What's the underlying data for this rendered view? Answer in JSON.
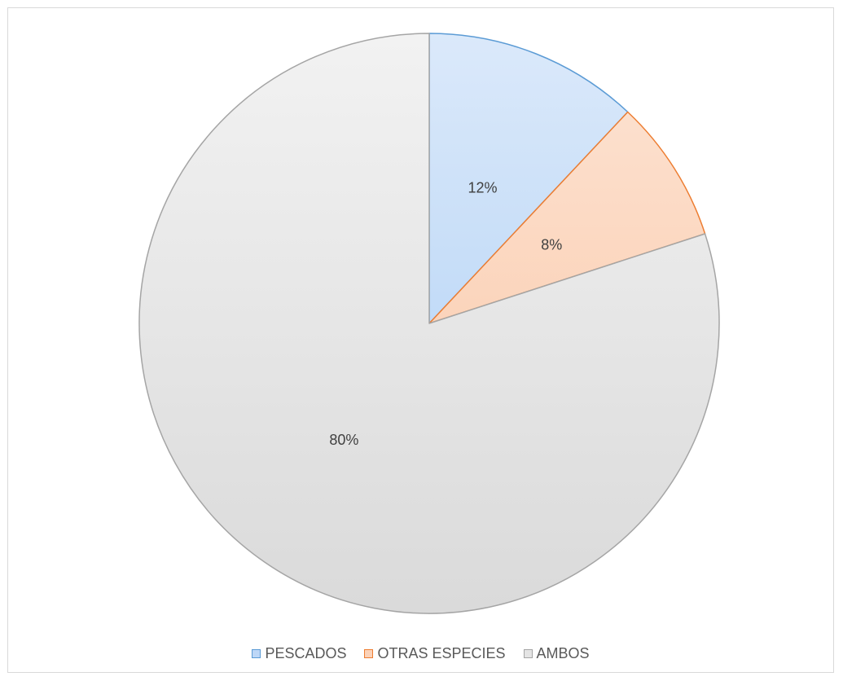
{
  "chart_data": {
    "type": "pie",
    "start_angle_deg": 0,
    "direction": "clockwise",
    "slices": [
      {
        "label": "PESCADOS",
        "value": 12,
        "display": "12%",
        "fill_light": "#dbe9fa",
        "fill_dark": "#a9cdf5",
        "stroke": "#5b9bd5"
      },
      {
        "label": "OTRAS ESPECIES",
        "value": 8,
        "display": "8%",
        "fill_light": "#fde4d4",
        "fill_dark": "#f9c4a2",
        "stroke": "#ed7d31"
      },
      {
        "label": "AMBOS",
        "value": 80,
        "display": "80%",
        "fill_light": "#f2f2f2",
        "fill_dark": "#dadada",
        "stroke": "#a5a5a5"
      }
    ],
    "legend_position": "bottom",
    "title": ""
  }
}
